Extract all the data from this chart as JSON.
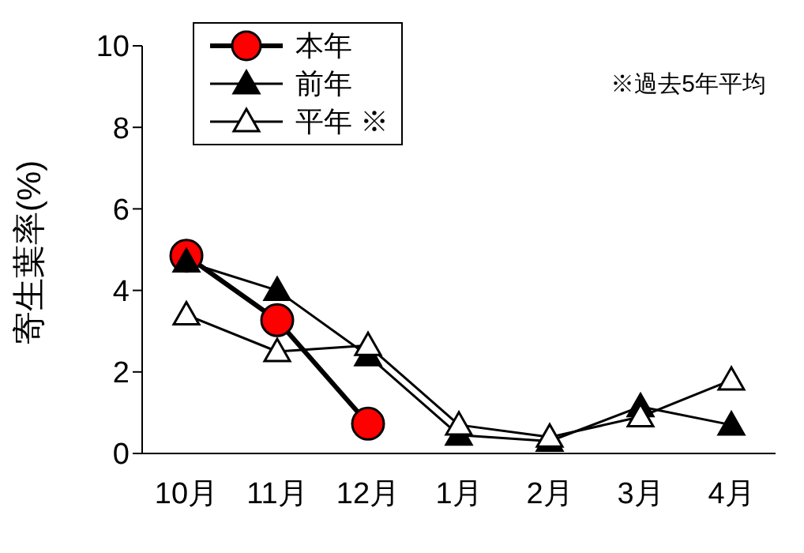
{
  "chart_data": {
    "type": "line",
    "ylabel": "寄生葉率(%)",
    "categories": [
      "10月",
      "11月",
      "12月",
      "1月",
      "2月",
      "3月",
      "4月"
    ],
    "series": [
      {
        "name": "本年",
        "color": "#ff0000",
        "marker": "circle",
        "values": [
          4.85,
          3.27,
          0.73,
          null,
          null,
          null,
          null
        ]
      },
      {
        "name": "前年",
        "color": "#000000",
        "marker": "triangle",
        "values": [
          4.7,
          4.0,
          2.4,
          0.45,
          0.3,
          1.15,
          0.7
        ]
      },
      {
        "name": "平年 ※",
        "color": "#ffffff",
        "marker": "triangle",
        "values": [
          3.4,
          2.5,
          2.65,
          0.7,
          0.4,
          0.9,
          1.8
        ]
      }
    ],
    "ylim": [
      0,
      10
    ],
    "yticks": [
      0,
      2,
      4,
      6,
      8,
      10
    ],
    "legend": "top left",
    "line_style": "solid",
    "annotations": [
      "※過去5年平均"
    ]
  }
}
